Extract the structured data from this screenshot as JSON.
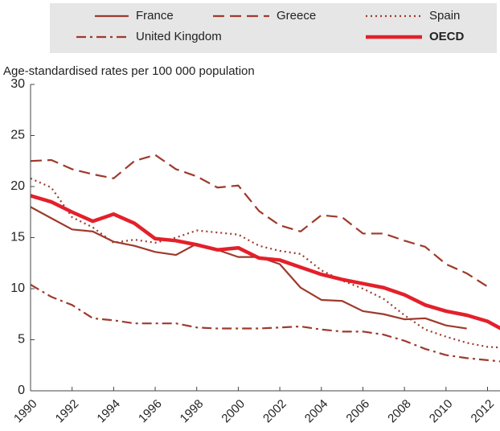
{
  "chart_data": {
    "type": "line",
    "y_label": "Age-standardised rates per 100 000 population",
    "x": [
      1990,
      1991,
      1992,
      1993,
      1994,
      1995,
      1996,
      1997,
      1998,
      1999,
      2000,
      2001,
      2002,
      2003,
      2004,
      2005,
      2006,
      2007,
      2008,
      2009,
      2010,
      2011,
      2012,
      2013
    ],
    "series": [
      {
        "name": "France",
        "color": "#9e3a2c",
        "line_style": "solid",
        "line_width": 2.2,
        "values": [
          18.0,
          16.9,
          15.8,
          15.6,
          14.6,
          14.2,
          13.6,
          13.3,
          14.4,
          13.8,
          13.1,
          13.1,
          12.4,
          10.1,
          8.9,
          8.8,
          7.8,
          7.5,
          7.0,
          7.1,
          6.4,
          6.1,
          null,
          null
        ]
      },
      {
        "name": "Greece",
        "color": "#9e3a2c",
        "line_style": "dashed",
        "line_width": 2.2,
        "values": [
          22.5,
          22.6,
          21.7,
          21.2,
          20.8,
          22.5,
          23.1,
          21.7,
          21.0,
          19.9,
          20.1,
          17.6,
          16.2,
          15.6,
          17.2,
          17.0,
          15.4,
          15.4,
          14.7,
          14.1,
          12.4,
          11.5,
          10.2,
          null
        ]
      },
      {
        "name": "Spain",
        "color": "#9e3a2c",
        "line_style": "dotted",
        "line_width": 2.2,
        "values": [
          20.8,
          19.9,
          17.0,
          16.0,
          14.5,
          14.8,
          14.5,
          15.0,
          15.7,
          15.5,
          15.3,
          14.2,
          13.7,
          13.4,
          11.8,
          10.8,
          10.0,
          9.0,
          7.4,
          6.0,
          5.3,
          4.7,
          4.3,
          4.2
        ]
      },
      {
        "name": "United Kingdom",
        "color": "#9e3a2c",
        "line_style": "dashdot",
        "line_width": 2.2,
        "values": [
          10.4,
          9.2,
          8.4,
          7.1,
          6.9,
          6.6,
          6.6,
          6.6,
          6.2,
          6.1,
          6.1,
          6.1,
          6.2,
          6.3,
          6.0,
          5.8,
          5.8,
          5.5,
          4.9,
          4.1,
          3.5,
          3.2,
          3.0,
          2.8
        ]
      },
      {
        "name": "OECD",
        "color": "#e3202b",
        "line_style": "solid",
        "line_width": 4.5,
        "values": [
          19.1,
          18.5,
          17.5,
          16.6,
          17.3,
          16.4,
          14.9,
          14.7,
          14.3,
          13.8,
          14.0,
          13.0,
          12.8,
          12.1,
          11.4,
          10.9,
          10.5,
          10.1,
          9.4,
          8.4,
          7.8,
          7.4,
          6.8,
          5.7
        ]
      }
    ],
    "xlim": [
      1990,
      2012.6
    ],
    "xticks": [
      1990,
      1992,
      1994,
      1996,
      1998,
      2000,
      2002,
      2004,
      2006,
      2008,
      2010,
      2012
    ],
    "ylim": [
      0,
      30
    ],
    "yticks": [
      0,
      5,
      10,
      15,
      20,
      25,
      30
    ],
    "grid": false,
    "legend": "top"
  }
}
